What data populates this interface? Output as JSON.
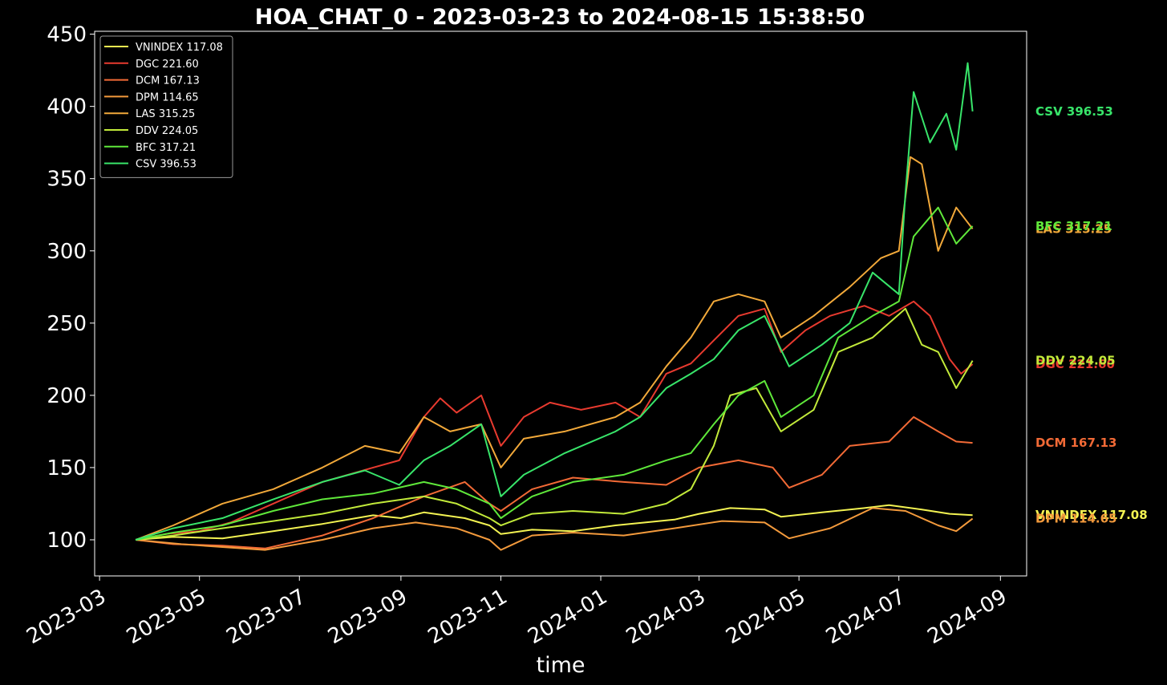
{
  "chart_data": {
    "type": "line",
    "title": "HOA_CHAT_0 - 2023-03-23 to 2024-08-15 15:38:50",
    "xlabel": "time",
    "ylabel": "",
    "xlim": [
      "2023-02-26",
      "2024-09-17"
    ],
    "ylim": [
      75,
      452
    ],
    "x_ticks": [
      "2023-03-01",
      "2023-05-01",
      "2023-07-01",
      "2023-09-01",
      "2023-11-01",
      "2024-01-01",
      "2024-03-01",
      "2024-05-01",
      "2024-07-01",
      "2024-09-01"
    ],
    "x_tick_labels": [
      "2023-03",
      "2023-05",
      "2023-07",
      "2023-09",
      "2023-11",
      "2024-01",
      "2024-03",
      "2024-05",
      "2024-07",
      "2024-09"
    ],
    "y_ticks": [
      100,
      150,
      200,
      250,
      300,
      350,
      400,
      450
    ],
    "y_tick_labels": [
      "100",
      "150",
      "200",
      "250",
      "300",
      "350",
      "400",
      "450"
    ],
    "grid": false,
    "legend_position": "top-left",
    "series": [
      {
        "name": "VNINDEX 117.08",
        "end_label": "VNINDEX 117.08",
        "color": "#f3f352",
        "points": [
          [
            "2023-03-23",
            100
          ],
          [
            "2023-04-15",
            102
          ],
          [
            "2023-05-15",
            101
          ],
          [
            "2023-06-15",
            106
          ],
          [
            "2023-07-15",
            111
          ],
          [
            "2023-08-15",
            117
          ],
          [
            "2023-09-01",
            115
          ],
          [
            "2023-09-15",
            119
          ],
          [
            "2023-10-10",
            115
          ],
          [
            "2023-10-25",
            110
          ],
          [
            "2023-11-01",
            104
          ],
          [
            "2023-11-20",
            107
          ],
          [
            "2023-12-15",
            106
          ],
          [
            "2024-01-10",
            110
          ],
          [
            "2024-02-15",
            114
          ],
          [
            "2024-03-01",
            118
          ],
          [
            "2024-03-20",
            122
          ],
          [
            "2024-04-10",
            121
          ],
          [
            "2024-04-20",
            116
          ],
          [
            "2024-05-15",
            119
          ],
          [
            "2024-06-10",
            122
          ],
          [
            "2024-06-25",
            124
          ],
          [
            "2024-07-15",
            121
          ],
          [
            "2024-08-01",
            118
          ],
          [
            "2024-08-15",
            117.08
          ]
        ]
      },
      {
        "name": "DGC 221.60",
        "end_label": "DGC 221.60",
        "color": "#e83a2f",
        "points": [
          [
            "2023-03-23",
            100
          ],
          [
            "2023-04-10",
            104
          ],
          [
            "2023-05-01",
            106
          ],
          [
            "2023-05-20",
            112
          ],
          [
            "2023-06-15",
            125
          ],
          [
            "2023-07-15",
            140
          ],
          [
            "2023-08-15",
            150
          ],
          [
            "2023-08-31",
            155
          ],
          [
            "2023-09-15",
            185
          ],
          [
            "2023-09-25",
            198
          ],
          [
            "2023-10-05",
            188
          ],
          [
            "2023-10-20",
            200
          ],
          [
            "2023-11-01",
            165
          ],
          [
            "2023-11-15",
            185
          ],
          [
            "2023-12-01",
            195
          ],
          [
            "2023-12-20",
            190
          ],
          [
            "2024-01-10",
            195
          ],
          [
            "2024-01-25",
            185
          ],
          [
            "2024-02-10",
            215
          ],
          [
            "2024-02-25",
            222
          ],
          [
            "2024-03-10",
            238
          ],
          [
            "2024-03-25",
            255
          ],
          [
            "2024-04-10",
            260
          ],
          [
            "2024-04-20",
            230
          ],
          [
            "2024-05-05",
            245
          ],
          [
            "2024-05-20",
            255
          ],
          [
            "2024-06-10",
            262
          ],
          [
            "2024-06-25",
            255
          ],
          [
            "2024-07-10",
            265
          ],
          [
            "2024-07-20",
            255
          ],
          [
            "2024-08-01",
            225
          ],
          [
            "2024-08-08",
            215
          ],
          [
            "2024-08-15",
            221.6
          ]
        ]
      },
      {
        "name": "DCM 167.13",
        "end_label": "DCM 167.13",
        "color": "#f26a36",
        "points": [
          [
            "2023-03-23",
            100
          ],
          [
            "2023-04-15",
            97
          ],
          [
            "2023-05-15",
            96
          ],
          [
            "2023-06-10",
            94
          ],
          [
            "2023-07-15",
            103
          ],
          [
            "2023-08-15",
            115
          ],
          [
            "2023-09-15",
            130
          ],
          [
            "2023-10-10",
            140
          ],
          [
            "2023-10-25",
            125
          ],
          [
            "2023-11-01",
            120
          ],
          [
            "2023-11-20",
            135
          ],
          [
            "2023-12-15",
            143
          ],
          [
            "2024-01-15",
            140
          ],
          [
            "2024-02-10",
            138
          ],
          [
            "2024-03-01",
            150
          ],
          [
            "2024-03-25",
            155
          ],
          [
            "2024-04-15",
            150
          ],
          [
            "2024-04-25",
            136
          ],
          [
            "2024-05-15",
            145
          ],
          [
            "2024-06-01",
            165
          ],
          [
            "2024-06-25",
            168
          ],
          [
            "2024-07-10",
            185
          ],
          [
            "2024-07-25",
            175
          ],
          [
            "2024-08-05",
            168
          ],
          [
            "2024-08-15",
            167.13
          ]
        ]
      },
      {
        "name": "DPM 114.65",
        "end_label": "DPM 114.65",
        "color": "#f39a3c",
        "points": [
          [
            "2023-03-23",
            100
          ],
          [
            "2023-04-20",
            97
          ],
          [
            "2023-05-15",
            95
          ],
          [
            "2023-06-10",
            93
          ],
          [
            "2023-07-15",
            100
          ],
          [
            "2023-08-15",
            108
          ],
          [
            "2023-09-10",
            112
          ],
          [
            "2023-10-05",
            108
          ],
          [
            "2023-10-25",
            100
          ],
          [
            "2023-11-01",
            93
          ],
          [
            "2023-11-20",
            103
          ],
          [
            "2023-12-15",
            105
          ],
          [
            "2024-01-15",
            103
          ],
          [
            "2024-02-15",
            108
          ],
          [
            "2024-03-15",
            113
          ],
          [
            "2024-04-10",
            112
          ],
          [
            "2024-04-25",
            101
          ],
          [
            "2024-05-20",
            108
          ],
          [
            "2024-06-15",
            122
          ],
          [
            "2024-07-05",
            120
          ],
          [
            "2024-07-25",
            110
          ],
          [
            "2024-08-05",
            106
          ],
          [
            "2024-08-15",
            114.65
          ]
        ]
      },
      {
        "name": "LAS 315.25",
        "end_label": "LAS 315.25",
        "color": "#f2a93a",
        "points": [
          [
            "2023-03-23",
            100
          ],
          [
            "2023-04-15",
            110
          ],
          [
            "2023-05-15",
            125
          ],
          [
            "2023-06-15",
            135
          ],
          [
            "2023-07-15",
            150
          ],
          [
            "2023-08-10",
            165
          ],
          [
            "2023-08-31",
            160
          ],
          [
            "2023-09-15",
            185
          ],
          [
            "2023-10-01",
            175
          ],
          [
            "2023-10-20",
            180
          ],
          [
            "2023-11-01",
            150
          ],
          [
            "2023-11-15",
            170
          ],
          [
            "2023-12-10",
            175
          ],
          [
            "2024-01-10",
            185
          ],
          [
            "2024-01-25",
            195
          ],
          [
            "2024-02-10",
            220
          ],
          [
            "2024-02-25",
            240
          ],
          [
            "2024-03-10",
            265
          ],
          [
            "2024-03-25",
            270
          ],
          [
            "2024-04-10",
            265
          ],
          [
            "2024-04-20",
            240
          ],
          [
            "2024-05-10",
            255
          ],
          [
            "2024-06-01",
            275
          ],
          [
            "2024-06-20",
            295
          ],
          [
            "2024-07-01",
            300
          ],
          [
            "2024-07-08",
            365
          ],
          [
            "2024-07-15",
            360
          ],
          [
            "2024-07-25",
            300
          ],
          [
            "2024-08-05",
            330
          ],
          [
            "2024-08-15",
            315.25
          ]
        ]
      },
      {
        "name": "DDV 224.05",
        "end_label": "DDV 224.05",
        "color": "#c2ea3a",
        "points": [
          [
            "2023-03-23",
            100
          ],
          [
            "2023-04-15",
            103
          ],
          [
            "2023-05-15",
            108
          ],
          [
            "2023-06-15",
            113
          ],
          [
            "2023-07-15",
            118
          ],
          [
            "2023-08-15",
            125
          ],
          [
            "2023-09-15",
            130
          ],
          [
            "2023-10-05",
            125
          ],
          [
            "2023-10-25",
            115
          ],
          [
            "2023-11-01",
            110
          ],
          [
            "2023-11-20",
            118
          ],
          [
            "2023-12-15",
            120
          ],
          [
            "2024-01-15",
            118
          ],
          [
            "2024-02-10",
            125
          ],
          [
            "2024-02-25",
            135
          ],
          [
            "2024-03-10",
            165
          ],
          [
            "2024-03-20",
            200
          ],
          [
            "2024-04-05",
            205
          ],
          [
            "2024-04-20",
            175
          ],
          [
            "2024-05-10",
            190
          ],
          [
            "2024-05-25",
            230
          ],
          [
            "2024-06-15",
            240
          ],
          [
            "2024-07-05",
            260
          ],
          [
            "2024-07-15",
            235
          ],
          [
            "2024-07-25",
            230
          ],
          [
            "2024-08-05",
            205
          ],
          [
            "2024-08-15",
            224.05
          ]
        ]
      },
      {
        "name": "BFC 317.21",
        "end_label": "BFC 317.21",
        "color": "#5fe83a",
        "points": [
          [
            "2023-03-23",
            100
          ],
          [
            "2023-04-15",
            105
          ],
          [
            "2023-05-15",
            110
          ],
          [
            "2023-06-15",
            120
          ],
          [
            "2023-07-15",
            128
          ],
          [
            "2023-08-15",
            132
          ],
          [
            "2023-09-15",
            140
          ],
          [
            "2023-10-05",
            135
          ],
          [
            "2023-10-25",
            125
          ],
          [
            "2023-11-01",
            115
          ],
          [
            "2023-11-20",
            130
          ],
          [
            "2023-12-15",
            140
          ],
          [
            "2024-01-15",
            145
          ],
          [
            "2024-02-10",
            155
          ],
          [
            "2024-02-25",
            160
          ],
          [
            "2024-03-10",
            180
          ],
          [
            "2024-03-25",
            200
          ],
          [
            "2024-04-10",
            210
          ],
          [
            "2024-04-20",
            185
          ],
          [
            "2024-05-10",
            200
          ],
          [
            "2024-05-25",
            240
          ],
          [
            "2024-06-15",
            255
          ],
          [
            "2024-07-01",
            265
          ],
          [
            "2024-07-10",
            310
          ],
          [
            "2024-07-25",
            330
          ],
          [
            "2024-08-05",
            305
          ],
          [
            "2024-08-15",
            317.21
          ]
        ]
      },
      {
        "name": "CSV 396.53",
        "end_label": "CSV 396.53",
        "color": "#38e56a",
        "points": [
          [
            "2023-03-23",
            100
          ],
          [
            "2023-04-15",
            108
          ],
          [
            "2023-05-15",
            115
          ],
          [
            "2023-06-15",
            128
          ],
          [
            "2023-07-15",
            140
          ],
          [
            "2023-08-10",
            148
          ],
          [
            "2023-08-31",
            138
          ],
          [
            "2023-09-15",
            155
          ],
          [
            "2023-10-01",
            165
          ],
          [
            "2023-10-20",
            180
          ],
          [
            "2023-11-01",
            130
          ],
          [
            "2023-11-15",
            145
          ],
          [
            "2023-12-10",
            160
          ],
          [
            "2024-01-10",
            175
          ],
          [
            "2024-01-25",
            185
          ],
          [
            "2024-02-10",
            205
          ],
          [
            "2024-02-25",
            215
          ],
          [
            "2024-03-10",
            225
          ],
          [
            "2024-03-25",
            245
          ],
          [
            "2024-04-10",
            255
          ],
          [
            "2024-04-25",
            220
          ],
          [
            "2024-05-15",
            235
          ],
          [
            "2024-06-01",
            250
          ],
          [
            "2024-06-15",
            285
          ],
          [
            "2024-07-01",
            270
          ],
          [
            "2024-07-05",
            340
          ],
          [
            "2024-07-10",
            410
          ],
          [
            "2024-07-20",
            375
          ],
          [
            "2024-07-30",
            395
          ],
          [
            "2024-08-05",
            370
          ],
          [
            "2024-08-12",
            430
          ],
          [
            "2024-08-15",
            396.53
          ]
        ]
      }
    ]
  }
}
